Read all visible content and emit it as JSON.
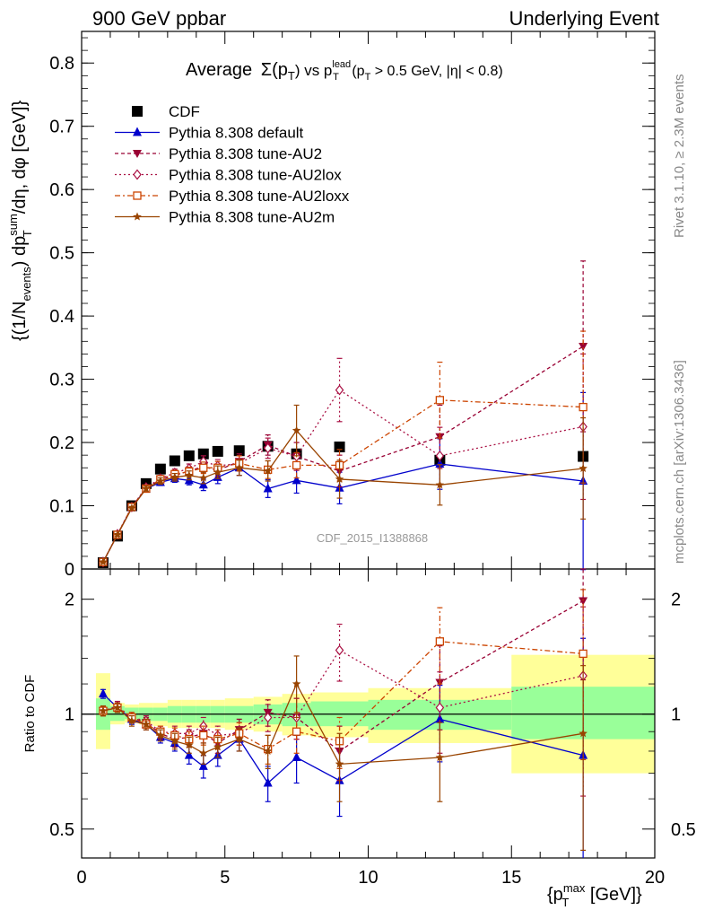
{
  "header": {
    "left": "900 GeV ppbar",
    "right": "Underlying Event"
  },
  "side_labels": {
    "rivet": "Rivet 3.1.10, ≥ 2.3M events",
    "mcplots": "mcplots.cern.ch [arXiv:1306.3436]"
  },
  "watermark": "CDF_2015_I1388868",
  "chart_data": [
    {
      "type": "line",
      "title_prefix": "Average",
      "title": "Average Σ(p_T) vs p_T^lead (p_T > 0.5 GeV, |η| < 0.8)",
      "title_sigma": "Σ(p",
      "title_sub_T": "T",
      "title_mid": ") vs p",
      "title_sup_lead": "lead",
      "title_tail": " (p",
      "title_tail2": " > 0.5 GeV, |η| < 0.8)",
      "ylabel": "{(1/N_events) dp_T^sum/dη, dφ [GeV]}",
      "ylabel_a": "{(1/N",
      "ylabel_sub_events": "events",
      "ylabel_b": ") dp",
      "ylabel_sup_sum": "sum",
      "ylabel_sub_T": "T",
      "ylabel_c": "/dη, dφ [GeV]}",
      "xlim": [
        0,
        20
      ],
      "ylim": [
        0,
        0.85
      ],
      "yticks": [
        "0",
        "0.1",
        "0.2",
        "0.3",
        "0.4",
        "0.5",
        "0.6",
        "0.7",
        "0.8"
      ],
      "legend_position": "top-left",
      "series": [
        {
          "name": "CDF",
          "color": "#000000",
          "marker": "filled-square",
          "x": [
            0.75,
            1.25,
            1.75,
            2.25,
            2.75,
            3.25,
            3.75,
            4.25,
            4.75,
            5.5,
            6.5,
            7.5,
            9.0,
            12.5,
            17.5
          ],
          "y": [
            0.01,
            0.052,
            0.1,
            0.135,
            0.158,
            0.171,
            0.179,
            0.182,
            0.186,
            0.187,
            0.194,
            0.182,
            0.193,
            0.172,
            0.178
          ]
        },
        {
          "name": "Pythia 8.308 default",
          "color": "#0000cc",
          "marker": "filled-triangle-up",
          "dash": "",
          "x": [
            0.75,
            1.25,
            1.75,
            2.25,
            2.75,
            3.25,
            3.75,
            4.25,
            4.75,
            5.5,
            6.5,
            7.5,
            9.0,
            12.5,
            17.5
          ],
          "y": [
            0.011,
            0.054,
            0.097,
            0.127,
            0.137,
            0.143,
            0.14,
            0.133,
            0.145,
            0.16,
            0.127,
            0.14,
            0.128,
            0.166,
            0.139
          ],
          "err": [
            0.001,
            0.002,
            0.003,
            0.004,
            0.005,
            0.006,
            0.007,
            0.009,
            0.01,
            0.012,
            0.014,
            0.02,
            0.025,
            0.04,
            0.14
          ]
        },
        {
          "name": "Pythia 8.308 tune-AU2",
          "color": "#990033",
          "marker": "filled-triangle-down",
          "dash": "4,3",
          "x": [
            0.75,
            1.25,
            1.75,
            2.25,
            2.75,
            3.25,
            3.75,
            4.25,
            4.75,
            5.5,
            6.5,
            7.5,
            9.0,
            12.5,
            17.5
          ],
          "y": [
            0.011,
            0.054,
            0.098,
            0.128,
            0.141,
            0.148,
            0.155,
            0.162,
            0.156,
            0.17,
            0.196,
            0.178,
            0.155,
            0.209,
            0.352
          ],
          "err": [
            0.001,
            0.002,
            0.003,
            0.004,
            0.005,
            0.006,
            0.007,
            0.009,
            0.01,
            0.012,
            0.016,
            0.022,
            0.025,
            0.05,
            0.135
          ]
        },
        {
          "name": "Pythia 8.308 tune-AU2lox",
          "color": "#aa1144",
          "marker": "open-diamond",
          "dash": "2,3",
          "x": [
            0.75,
            1.25,
            1.75,
            2.25,
            2.75,
            3.25,
            3.75,
            4.25,
            4.75,
            5.5,
            6.5,
            7.5,
            9.0,
            12.5,
            17.5
          ],
          "y": [
            0.011,
            0.055,
            0.098,
            0.129,
            0.143,
            0.152,
            0.159,
            0.17,
            0.163,
            0.167,
            0.191,
            0.178,
            0.283,
            0.179,
            0.225
          ],
          "err": [
            0.001,
            0.002,
            0.003,
            0.004,
            0.005,
            0.006,
            0.007,
            0.009,
            0.01,
            0.012,
            0.016,
            0.022,
            0.05,
            0.045,
            0.115
          ]
        },
        {
          "name": "Pythia 8.308 tune-AU2loxx",
          "color": "#cc4400",
          "marker": "open-square",
          "dash": "6,3,2,3",
          "x": [
            0.75,
            1.25,
            1.75,
            2.25,
            2.75,
            3.25,
            3.75,
            4.25,
            4.75,
            5.5,
            6.5,
            7.5,
            9.0,
            12.5,
            17.5
          ],
          "y": [
            0.011,
            0.054,
            0.098,
            0.127,
            0.142,
            0.15,
            0.154,
            0.16,
            0.16,
            0.167,
            0.157,
            0.164,
            0.164,
            0.267,
            0.256
          ],
          "err": [
            0.001,
            0.002,
            0.003,
            0.004,
            0.005,
            0.006,
            0.007,
            0.009,
            0.01,
            0.012,
            0.014,
            0.02,
            0.025,
            0.06,
            0.12
          ]
        },
        {
          "name": "Pythia 8.308 tune-AU2m",
          "color": "#994400",
          "marker": "filled-star",
          "dash": "",
          "x": [
            0.75,
            1.25,
            1.75,
            2.25,
            2.75,
            3.25,
            3.75,
            4.25,
            4.75,
            5.5,
            6.5,
            7.5,
            9.0,
            12.5,
            17.5
          ],
          "y": [
            0.011,
            0.054,
            0.096,
            0.127,
            0.139,
            0.145,
            0.148,
            0.144,
            0.153,
            0.16,
            0.155,
            0.219,
            0.142,
            0.133,
            0.159
          ],
          "err": [
            0.001,
            0.002,
            0.003,
            0.004,
            0.005,
            0.006,
            0.007,
            0.009,
            0.01,
            0.012,
            0.016,
            0.04,
            0.03,
            0.032,
            0.08
          ]
        }
      ]
    },
    {
      "type": "line",
      "ylabel": "Ratio to CDF",
      "xlabel": "{p_T^max [GeV]}",
      "xlabel_a": "{p",
      "xlabel_sup": "max",
      "xlabel_sub": "T",
      "xlabel_b": " [GeV]}",
      "xlim": [
        0,
        20
      ],
      "ylim": [
        0.42,
        2.4
      ],
      "log_y": true,
      "yticks": [
        "0.5",
        "1",
        "2"
      ],
      "xticks": [
        "0",
        "5",
        "10",
        "15",
        "20"
      ],
      "reference_line": 1,
      "bands": [
        {
          "x0": 0.5,
          "x1": 1.0,
          "inner": [
            0.91,
            1.1
          ],
          "outer": [
            0.81,
            1.28
          ]
        },
        {
          "x0": 1.0,
          "x1": 1.5,
          "inner": [
            0.96,
            1.05
          ],
          "outer": [
            0.94,
            1.07
          ]
        },
        {
          "x0": 1.5,
          "x1": 2.0,
          "inner": [
            0.97,
            1.04
          ],
          "outer": [
            0.95,
            1.06
          ]
        },
        {
          "x0": 2.0,
          "x1": 2.5,
          "inner": [
            0.96,
            1.04
          ],
          "outer": [
            0.94,
            1.07
          ]
        },
        {
          "x0": 2.5,
          "x1": 3.0,
          "inner": [
            0.96,
            1.04
          ],
          "outer": [
            0.93,
            1.07
          ]
        },
        {
          "x0": 3.0,
          "x1": 3.5,
          "inner": [
            0.95,
            1.05
          ],
          "outer": [
            0.92,
            1.09
          ]
        },
        {
          "x0": 3.5,
          "x1": 4.0,
          "inner": [
            0.95,
            1.05
          ],
          "outer": [
            0.92,
            1.09
          ]
        },
        {
          "x0": 4.0,
          "x1": 4.5,
          "inner": [
            0.95,
            1.05
          ],
          "outer": [
            0.92,
            1.09
          ]
        },
        {
          "x0": 4.5,
          "x1": 5.0,
          "inner": [
            0.95,
            1.05
          ],
          "outer": [
            0.92,
            1.09
          ]
        },
        {
          "x0": 5.0,
          "x1": 6.0,
          "inner": [
            0.95,
            1.05
          ],
          "outer": [
            0.91,
            1.1
          ]
        },
        {
          "x0": 6.0,
          "x1": 7.0,
          "inner": [
            0.94,
            1.06
          ],
          "outer": [
            0.9,
            1.11
          ]
        },
        {
          "x0": 7.0,
          "x1": 8.0,
          "inner": [
            0.93,
            1.07
          ],
          "outer": [
            0.88,
            1.13
          ]
        },
        {
          "x0": 8.0,
          "x1": 10.0,
          "inner": [
            0.93,
            1.08
          ],
          "outer": [
            0.87,
            1.14
          ]
        },
        {
          "x0": 10.0,
          "x1": 15.0,
          "inner": [
            0.91,
            1.09
          ],
          "outer": [
            0.84,
            1.17
          ]
        },
        {
          "x0": 15.0,
          "x1": 20.0,
          "inner": [
            0.86,
            1.18
          ],
          "outer": [
            0.7,
            1.43
          ]
        }
      ],
      "series": [
        {
          "name": "Pythia 8.308 default",
          "x": [
            0.75,
            1.25,
            1.75,
            2.25,
            2.75,
            3.25,
            3.75,
            4.25,
            4.75,
            5.5,
            6.5,
            7.5,
            9.0,
            12.5,
            17.5
          ],
          "y": [
            1.13,
            1.04,
            0.97,
            0.94,
            0.87,
            0.84,
            0.78,
            0.73,
            0.78,
            0.86,
            0.66,
            0.77,
            0.67,
            0.97,
            0.78
          ],
          "err": [
            0.03,
            0.03,
            0.03,
            0.03,
            0.03,
            0.04,
            0.04,
            0.05,
            0.05,
            0.06,
            0.07,
            0.11,
            0.13,
            0.22,
            0.8
          ]
        },
        {
          "name": "Pythia 8.308 tune-AU2",
          "x": [
            0.75,
            1.25,
            1.75,
            2.25,
            2.75,
            3.25,
            3.75,
            4.25,
            4.75,
            5.5,
            6.5,
            7.5,
            9.0,
            12.5,
            17.5
          ],
          "y": [
            1.02,
            1.04,
            0.98,
            0.95,
            0.89,
            0.86,
            0.87,
            0.89,
            0.84,
            0.91,
            1.01,
            0.98,
            0.8,
            1.21,
            1.98
          ],
          "err": [
            0.03,
            0.03,
            0.03,
            0.03,
            0.03,
            0.04,
            0.04,
            0.05,
            0.05,
            0.06,
            0.08,
            0.12,
            0.13,
            0.3,
            0.75
          ]
        },
        {
          "name": "Pythia 8.308 tune-AU2lox",
          "x": [
            0.75,
            1.25,
            1.75,
            2.25,
            2.75,
            3.25,
            3.75,
            4.25,
            4.75,
            5.5,
            6.5,
            7.5,
            9.0,
            12.5,
            17.5
          ],
          "y": [
            1.02,
            1.05,
            0.98,
            0.96,
            0.9,
            0.89,
            0.89,
            0.93,
            0.88,
            0.89,
            0.98,
            0.98,
            1.47,
            1.04,
            1.26
          ],
          "err": [
            0.03,
            0.03,
            0.03,
            0.03,
            0.03,
            0.04,
            0.04,
            0.05,
            0.05,
            0.06,
            0.08,
            0.12,
            0.25,
            0.25,
            0.65
          ]
        },
        {
          "name": "Pythia 8.308 tune-AU2loxx",
          "x": [
            0.75,
            1.25,
            1.75,
            2.25,
            2.75,
            3.25,
            3.75,
            4.25,
            4.75,
            5.5,
            6.5,
            7.5,
            9.0,
            12.5,
            17.5
          ],
          "y": [
            1.02,
            1.04,
            0.98,
            0.94,
            0.9,
            0.88,
            0.86,
            0.88,
            0.86,
            0.89,
            0.81,
            0.9,
            0.85,
            1.55,
            1.44
          ],
          "err": [
            0.03,
            0.03,
            0.03,
            0.03,
            0.03,
            0.04,
            0.04,
            0.05,
            0.05,
            0.06,
            0.07,
            0.11,
            0.13,
            0.35,
            0.68
          ]
        },
        {
          "name": "Pythia 8.308 tune-AU2m",
          "x": [
            0.75,
            1.25,
            1.75,
            2.25,
            2.75,
            3.25,
            3.75,
            4.25,
            4.75,
            5.5,
            6.5,
            7.5,
            9.0,
            12.5,
            17.5
          ],
          "y": [
            1.02,
            1.04,
            0.96,
            0.94,
            0.88,
            0.85,
            0.83,
            0.79,
            0.82,
            0.86,
            0.8,
            1.2,
            0.74,
            0.77,
            0.89
          ],
          "err": [
            0.03,
            0.03,
            0.03,
            0.03,
            0.03,
            0.04,
            0.04,
            0.05,
            0.05,
            0.06,
            0.08,
            0.22,
            0.15,
            0.18,
            0.45
          ]
        }
      ]
    }
  ]
}
